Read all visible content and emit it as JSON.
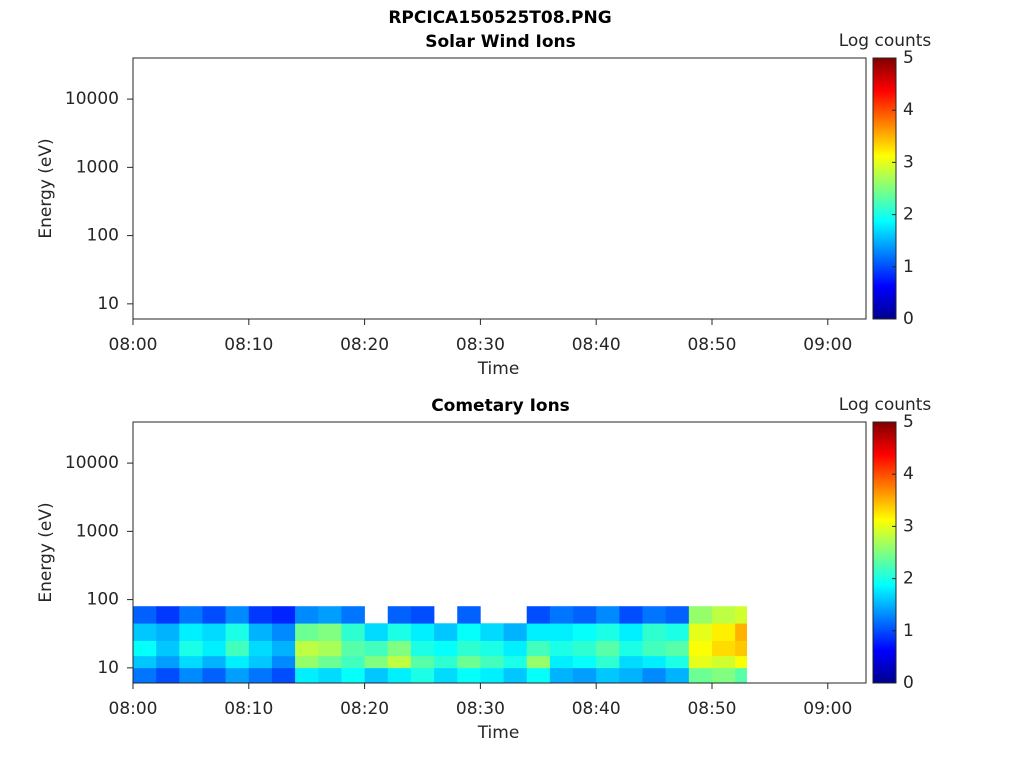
{
  "title": "RPCICA150525T08.PNG",
  "chart_data": [
    {
      "type": "heatmap",
      "title": "Solar Wind Ions",
      "xlabel": "Time",
      "ylabel": "Energy (eV)",
      "xlim": [
        0,
        63.3
      ],
      "xticks": [
        {
          "value": 0,
          "label": "08:00"
        },
        {
          "value": 10,
          "label": "08:10"
        },
        {
          "value": 20,
          "label": "08:20"
        },
        {
          "value": 30,
          "label": "08:30"
        },
        {
          "value": 40,
          "label": "08:40"
        },
        {
          "value": 50,
          "label": "08:50"
        },
        {
          "value": 60,
          "label": "09:00"
        }
      ],
      "ylim": [
        6,
        40000
      ],
      "yticks": [
        10,
        100,
        1000,
        10000
      ],
      "ylog": true,
      "colormap": "jet",
      "clabel": "Log counts",
      "clim": [
        0,
        5
      ],
      "cticks": [
        0,
        1,
        2,
        3,
        4,
        5
      ]
    },
    {
      "type": "heatmap",
      "title": "Cometary Ions",
      "xlabel": "Time",
      "ylabel": "Energy (eV)",
      "xlim": [
        0,
        63.3
      ],
      "xticks": [
        {
          "value": 0,
          "label": "08:00"
        },
        {
          "value": 10,
          "label": "08:10"
        },
        {
          "value": 20,
          "label": "08:20"
        },
        {
          "value": 30,
          "label": "08:30"
        },
        {
          "value": 40,
          "label": "08:40"
        },
        {
          "value": 50,
          "label": "08:50"
        },
        {
          "value": 60,
          "label": "09:00"
        }
      ],
      "ylim": [
        6,
        40000
      ],
      "yticks": [
        10,
        100,
        1000,
        10000
      ],
      "ylog": true,
      "colormap": "jet",
      "clabel": "Log counts",
      "clim": [
        0,
        5
      ],
      "cticks": [
        0,
        1,
        2,
        3,
        4,
        5
      ],
      "x_bins": [
        0,
        2,
        4,
        6,
        8,
        10,
        12,
        14,
        16,
        18,
        20,
        22,
        24,
        26,
        28,
        30,
        32,
        34,
        36,
        38,
        40,
        42,
        44,
        46,
        48,
        50,
        52,
        53
      ],
      "y_bins": [
        6,
        10,
        15,
        25,
        45,
        80
      ],
      "z": [
        [
          1.2,
          1.0,
          1.3,
          1.1,
          1.4,
          1.2,
          1.0,
          1.8,
          1.7,
          1.9,
          1.6,
          1.8,
          2.0,
          1.7,
          1.9,
          1.8,
          1.6,
          1.9,
          1.5,
          1.4,
          1.6,
          1.5,
          1.3,
          1.5,
          2.4,
          2.5,
          2.3
        ],
        [
          1.6,
          1.4,
          1.7,
          1.5,
          1.8,
          1.6,
          1.3,
          2.6,
          2.4,
          2.2,
          2.5,
          2.8,
          2.3,
          2.1,
          2.4,
          2.2,
          2.0,
          2.6,
          1.8,
          1.9,
          2.1,
          1.7,
          1.8,
          2.0,
          3.0,
          2.9,
          3.1
        ],
        [
          1.9,
          1.6,
          2.0,
          1.8,
          2.2,
          1.7,
          1.5,
          2.8,
          2.7,
          2.3,
          2.2,
          2.5,
          2.0,
          1.9,
          2.1,
          2.0,
          1.8,
          2.2,
          2.0,
          2.1,
          2.3,
          2.0,
          2.2,
          2.3,
          3.1,
          3.3,
          3.4
        ],
        [
          1.6,
          1.5,
          1.8,
          1.7,
          2.0,
          1.5,
          1.3,
          2.4,
          2.5,
          2.1,
          1.7,
          2.0,
          1.8,
          1.6,
          1.9,
          1.7,
          1.5,
          1.8,
          1.8,
          1.9,
          2.0,
          1.8,
          2.1,
          2.0,
          3.0,
          3.2,
          3.5
        ],
        [
          1.1,
          0.9,
          1.2,
          1.0,
          1.3,
          0.9,
          0.8,
          1.3,
          1.4,
          1.2,
          null,
          1.1,
          1.0,
          null,
          1.1,
          null,
          null,
          1.0,
          1.2,
          1.1,
          1.3,
          1.0,
          1.2,
          1.1,
          2.6,
          2.8,
          2.9
        ]
      ]
    }
  ]
}
